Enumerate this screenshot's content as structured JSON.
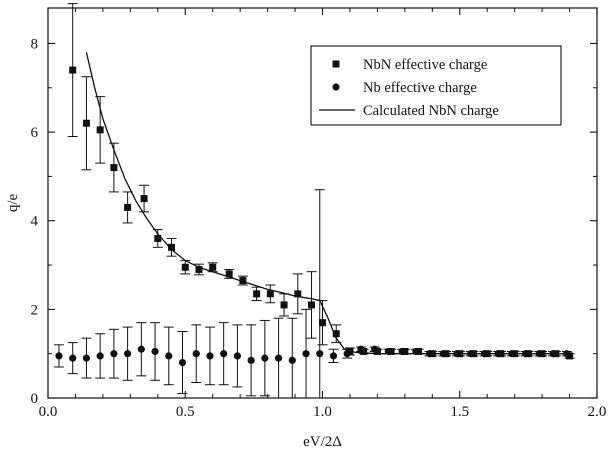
{
  "chart_data": {
    "type": "scatter",
    "title": "",
    "xlabel": "eV/2Δ",
    "ylabel": "q/e",
    "xlim": [
      0,
      2.0
    ],
    "ylim": [
      0,
      8.8
    ],
    "xticks": [
      {
        "value": 0.0,
        "label": "0.0"
      },
      {
        "value": 0.5,
        "label": "0.5"
      },
      {
        "value": 1.0,
        "label": "1.0"
      },
      {
        "value": 1.5,
        "label": "1.5"
      },
      {
        "value": 2.0,
        "label": "2.0"
      }
    ],
    "yticks": [
      {
        "value": 0,
        "label": "0"
      },
      {
        "value": 2,
        "label": "2"
      },
      {
        "value": 4,
        "label": "4"
      },
      {
        "value": 6,
        "label": "6"
      },
      {
        "value": 8,
        "label": "8"
      }
    ],
    "grid": false,
    "legend_position": "top-right",
    "series": [
      {
        "name": "NbN effective charge",
        "marker": "square",
        "color": "#111111",
        "points": [
          {
            "x": 0.09,
            "y": 7.4,
            "err": 1.5
          },
          {
            "x": 0.14,
            "y": 6.2,
            "err": 1.05
          },
          {
            "x": 0.19,
            "y": 6.05,
            "err": 0.75
          },
          {
            "x": 0.24,
            "y": 5.2,
            "err": 0.55
          },
          {
            "x": 0.29,
            "y": 4.3,
            "err": 0.35
          },
          {
            "x": 0.35,
            "y": 4.5,
            "err": 0.3
          },
          {
            "x": 0.4,
            "y": 3.6,
            "err": 0.2
          },
          {
            "x": 0.45,
            "y": 3.4,
            "err": 0.2
          },
          {
            "x": 0.5,
            "y": 2.95,
            "err": 0.15
          },
          {
            "x": 0.55,
            "y": 2.9,
            "err": 0.12
          },
          {
            "x": 0.6,
            "y": 2.95,
            "err": 0.1
          },
          {
            "x": 0.66,
            "y": 2.8,
            "err": 0.1
          },
          {
            "x": 0.71,
            "y": 2.65,
            "err": 0.1
          },
          {
            "x": 0.76,
            "y": 2.35,
            "err": 0.15
          },
          {
            "x": 0.81,
            "y": 2.35,
            "err": 0.2
          },
          {
            "x": 0.86,
            "y": 2.1,
            "err": 0.25
          },
          {
            "x": 0.91,
            "y": 2.35,
            "err": 0.45
          },
          {
            "x": 0.96,
            "y": 2.1,
            "err": 0.75
          },
          {
            "x": 1.0,
            "y": 1.7,
            "err": 0.5
          },
          {
            "x": 1.05,
            "y": 1.45,
            "err": 0.2
          },
          {
            "x": 1.1,
            "y": 1.05,
            "err": 0.08
          },
          {
            "x": 1.15,
            "y": 1.05,
            "err": 0.05
          },
          {
            "x": 1.2,
            "y": 1.05,
            "err": 0.05
          },
          {
            "x": 1.25,
            "y": 1.05,
            "err": 0.05
          },
          {
            "x": 1.3,
            "y": 1.05,
            "err": 0.05
          },
          {
            "x": 1.35,
            "y": 1.05,
            "err": 0.05
          },
          {
            "x": 1.4,
            "y": 1.0,
            "err": 0.05
          },
          {
            "x": 1.45,
            "y": 1.0,
            "err": 0.05
          },
          {
            "x": 1.5,
            "y": 1.0,
            "err": 0.05
          },
          {
            "x": 1.55,
            "y": 1.0,
            "err": 0.05
          },
          {
            "x": 1.6,
            "y": 1.0,
            "err": 0.05
          },
          {
            "x": 1.65,
            "y": 1.0,
            "err": 0.05
          },
          {
            "x": 1.7,
            "y": 1.0,
            "err": 0.05
          },
          {
            "x": 1.75,
            "y": 1.0,
            "err": 0.05
          },
          {
            "x": 1.8,
            "y": 1.0,
            "err": 0.05
          },
          {
            "x": 1.85,
            "y": 1.0,
            "err": 0.05
          },
          {
            "x": 1.9,
            "y": 0.95,
            "err": 0.05
          }
        ]
      },
      {
        "name": "Nb effective charge",
        "marker": "circle",
        "color": "#111111",
        "points": [
          {
            "x": 0.04,
            "y": 0.95,
            "err": 0.25
          },
          {
            "x": 0.09,
            "y": 0.9,
            "err": 0.35
          },
          {
            "x": 0.14,
            "y": 0.9,
            "err": 0.45
          },
          {
            "x": 0.19,
            "y": 0.95,
            "err": 0.5
          },
          {
            "x": 0.24,
            "y": 1.0,
            "err": 0.55
          },
          {
            "x": 0.29,
            "y": 1.0,
            "err": 0.6
          },
          {
            "x": 0.34,
            "y": 1.1,
            "err": 0.6
          },
          {
            "x": 0.39,
            "y": 1.05,
            "err": 0.65
          },
          {
            "x": 0.44,
            "y": 0.95,
            "err": 0.65
          },
          {
            "x": 0.49,
            "y": 0.8,
            "err": 0.7
          },
          {
            "x": 0.54,
            "y": 1.0,
            "err": 0.65
          },
          {
            "x": 0.59,
            "y": 0.95,
            "err": 0.65
          },
          {
            "x": 0.64,
            "y": 1.0,
            "err": 0.7
          },
          {
            "x": 0.69,
            "y": 0.95,
            "err": 0.7
          },
          {
            "x": 0.74,
            "y": 0.85,
            "err": 0.8
          },
          {
            "x": 0.79,
            "y": 0.9,
            "err": 0.85
          },
          {
            "x": 0.84,
            "y": 0.9,
            "err": 0.9
          },
          {
            "x": 0.89,
            "y": 0.85,
            "err": 0.95
          },
          {
            "x": 0.94,
            "y": 1.0,
            "err": 1.0
          },
          {
            "x": 0.99,
            "y": 1.0,
            "err": 3.7
          },
          {
            "x": 1.04,
            "y": 0.95,
            "err": 0.15
          },
          {
            "x": 1.09,
            "y": 1.0,
            "err": 0.1
          },
          {
            "x": 1.14,
            "y": 1.1,
            "err": 0.05
          },
          {
            "x": 1.19,
            "y": 1.1,
            "err": 0.05
          },
          {
            "x": 1.24,
            "y": 1.05,
            "err": 0.05
          },
          {
            "x": 1.29,
            "y": 1.05,
            "err": 0.05
          },
          {
            "x": 1.34,
            "y": 1.05,
            "err": 0.05
          },
          {
            "x": 1.39,
            "y": 1.0,
            "err": 0.05
          },
          {
            "x": 1.44,
            "y": 1.0,
            "err": 0.05
          },
          {
            "x": 1.49,
            "y": 1.0,
            "err": 0.05
          },
          {
            "x": 1.54,
            "y": 1.0,
            "err": 0.05
          },
          {
            "x": 1.59,
            "y": 1.0,
            "err": 0.05
          },
          {
            "x": 1.64,
            "y": 1.0,
            "err": 0.05
          },
          {
            "x": 1.69,
            "y": 1.0,
            "err": 0.05
          },
          {
            "x": 1.74,
            "y": 1.0,
            "err": 0.05
          },
          {
            "x": 1.79,
            "y": 1.0,
            "err": 0.05
          },
          {
            "x": 1.84,
            "y": 1.0,
            "err": 0.05
          },
          {
            "x": 1.89,
            "y": 1.0,
            "err": 0.05
          }
        ]
      },
      {
        "name": "Calculated NbN charge",
        "marker": "line",
        "color": "#111111",
        "points": [
          {
            "x": 0.14,
            "y": 7.8
          },
          {
            "x": 0.17,
            "y": 7.0
          },
          {
            "x": 0.2,
            "y": 6.3
          },
          {
            "x": 0.24,
            "y": 5.6
          },
          {
            "x": 0.28,
            "y": 4.95
          },
          {
            "x": 0.32,
            "y": 4.45
          },
          {
            "x": 0.36,
            "y": 4.05
          },
          {
            "x": 0.4,
            "y": 3.7
          },
          {
            "x": 0.45,
            "y": 3.35
          },
          {
            "x": 0.5,
            "y": 3.1
          },
          {
            "x": 0.55,
            "y": 2.95
          },
          {
            "x": 0.6,
            "y": 2.85
          },
          {
            "x": 0.65,
            "y": 2.75
          },
          {
            "x": 0.7,
            "y": 2.65
          },
          {
            "x": 0.75,
            "y": 2.55
          },
          {
            "x": 0.8,
            "y": 2.45
          },
          {
            "x": 0.85,
            "y": 2.38
          },
          {
            "x": 0.9,
            "y": 2.3
          },
          {
            "x": 0.95,
            "y": 2.25
          },
          {
            "x": 0.99,
            "y": 2.2
          },
          {
            "x": 1.02,
            "y": 1.8
          },
          {
            "x": 1.05,
            "y": 1.35
          },
          {
            "x": 1.08,
            "y": 1.1
          },
          {
            "x": 1.12,
            "y": 1.03
          },
          {
            "x": 1.2,
            "y": 1.0
          },
          {
            "x": 1.4,
            "y": 1.0
          },
          {
            "x": 1.6,
            "y": 1.0
          },
          {
            "x": 1.8,
            "y": 1.0
          },
          {
            "x": 1.9,
            "y": 1.0
          }
        ]
      }
    ]
  }
}
